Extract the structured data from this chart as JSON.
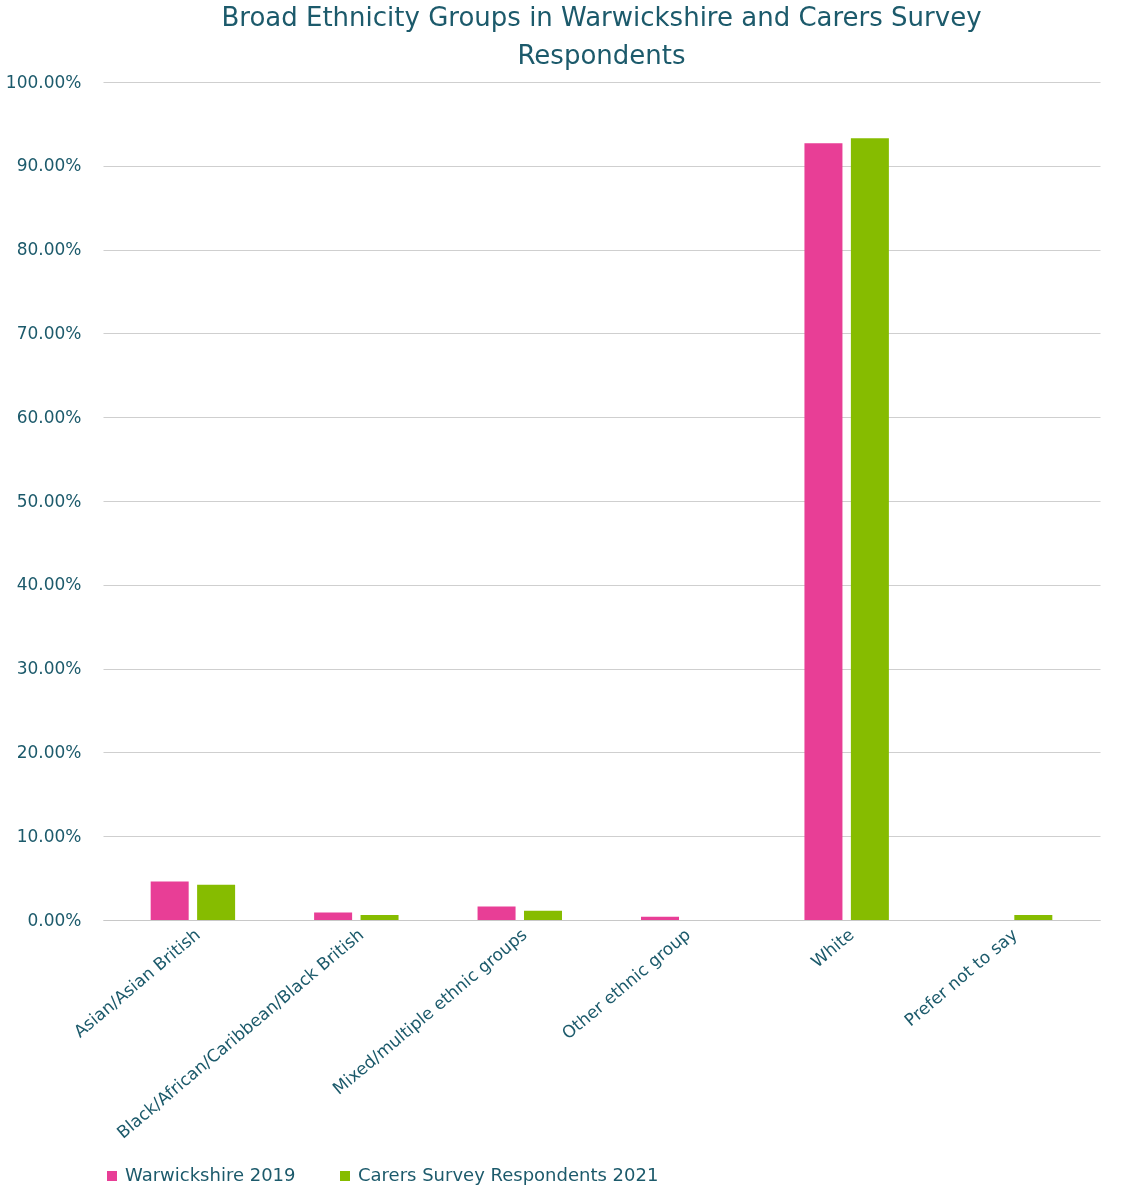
{
  "chart_data": {
    "type": "bar",
    "title": "Broad Ethnicity Groups in Warwickshire and Carers Survey Respondents",
    "categories": [
      "Asian/Asian British",
      "Black/African/Caribbean/Black British",
      "Mixed/multiple ethnic groups",
      "Other ethnic group",
      "White",
      "Prefer not to say"
    ],
    "series": [
      {
        "name": "Warwickshire 2019",
        "color": "#e83e96",
        "values": [
          4.6,
          0.9,
          1.6,
          0.4,
          92.7,
          null
        ]
      },
      {
        "name": "Carers Survey Respondents 2021",
        "color": "#86bc00",
        "values": [
          4.2,
          0.6,
          1.1,
          null,
          93.3,
          0.6
        ]
      }
    ],
    "ylim": [
      0,
      100
    ],
    "yticks": [
      {
        "value": 0,
        "label": "0.00%"
      },
      {
        "value": 10,
        "label": "10.00%"
      },
      {
        "value": 20,
        "label": "20.00%"
      },
      {
        "value": 30,
        "label": "30.00%"
      },
      {
        "value": 40,
        "label": "40.00%"
      },
      {
        "value": 50,
        "label": "50.00%"
      },
      {
        "value": 60,
        "label": "60.00%"
      },
      {
        "value": 70,
        "label": "70.00%"
      },
      {
        "value": 80,
        "label": "80.00%"
      },
      {
        "value": 90,
        "label": "90.00%"
      },
      {
        "value": 100,
        "label": "100.00%"
      }
    ],
    "grid": "y",
    "legend": "bottom"
  }
}
